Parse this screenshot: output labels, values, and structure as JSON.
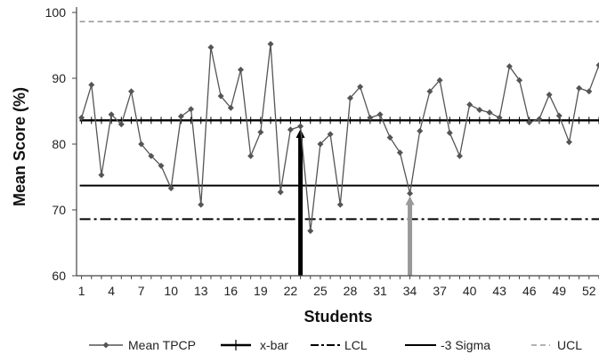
{
  "chart_data": {
    "type": "line",
    "xlabel": "Students",
    "ylabel": "Mean Score (%)",
    "ylim": [
      60,
      100
    ],
    "yticks": [
      60,
      70,
      80,
      90,
      100
    ],
    "xtick_labels": [
      "1",
      "4",
      "7",
      "10",
      "13",
      "16",
      "19",
      "22",
      "25",
      "28",
      "31",
      "34",
      "37",
      "40",
      "43",
      "46",
      "49",
      "52"
    ],
    "xtick_values": [
      1,
      4,
      7,
      10,
      13,
      16,
      19,
      22,
      25,
      28,
      31,
      34,
      37,
      40,
      43,
      46,
      49,
      52
    ],
    "x": [
      1,
      2,
      3,
      4,
      5,
      6,
      7,
      8,
      9,
      10,
      11,
      12,
      13,
      14,
      15,
      16,
      17,
      18,
      19,
      20,
      21,
      22,
      23,
      24,
      25,
      26,
      27,
      28,
      29,
      30,
      31,
      32,
      33,
      34,
      35,
      36,
      37,
      38,
      39,
      40,
      41,
      42,
      43,
      44,
      45,
      46,
      47,
      48,
      49,
      50,
      51,
      52,
      53
    ],
    "series": [
      {
        "name": "Mean TPCP",
        "style": "line-diamond",
        "color": "#555555",
        "values": [
          84.0,
          89.0,
          75.3,
          84.5,
          83.0,
          88.0,
          80.0,
          78.2,
          76.7,
          73.3,
          84.2,
          85.3,
          70.8,
          94.7,
          87.3,
          85.5,
          91.3,
          78.2,
          81.8,
          95.2,
          72.7,
          82.2,
          82.7,
          66.8,
          80.0,
          81.5,
          70.8,
          87.0,
          88.7,
          84.0,
          84.5,
          81.0,
          78.7,
          72.5,
          82.0,
          88.0,
          89.7,
          81.7,
          78.2,
          86.0,
          85.2,
          84.8,
          84.0,
          91.8,
          89.7,
          83.3,
          83.8,
          87.5,
          84.3,
          80.3,
          88.5,
          88.0,
          92.0
        ]
      },
      {
        "name": "x-bar",
        "style": "hline-cross",
        "color": "#000000",
        "value": 83.6
      },
      {
        "name": "LCL",
        "style": "hline-dashdot",
        "color": "#000000",
        "value": 68.6
      },
      {
        "name": "-3 Sigma",
        "style": "hline-solid",
        "color": "#000000",
        "value": 73.7
      },
      {
        "name": "UCL",
        "style": "hline-dashed",
        "color": "#999999",
        "value": 98.6
      }
    ],
    "annotations": [
      {
        "type": "arrow",
        "x": 23,
        "from": 60,
        "to": 82.7,
        "color": "#000000"
      },
      {
        "type": "arrow",
        "x": 34,
        "from": 60,
        "to": 72.5,
        "color": "#999999"
      }
    ],
    "legend_position": "bottom",
    "grid": false
  }
}
